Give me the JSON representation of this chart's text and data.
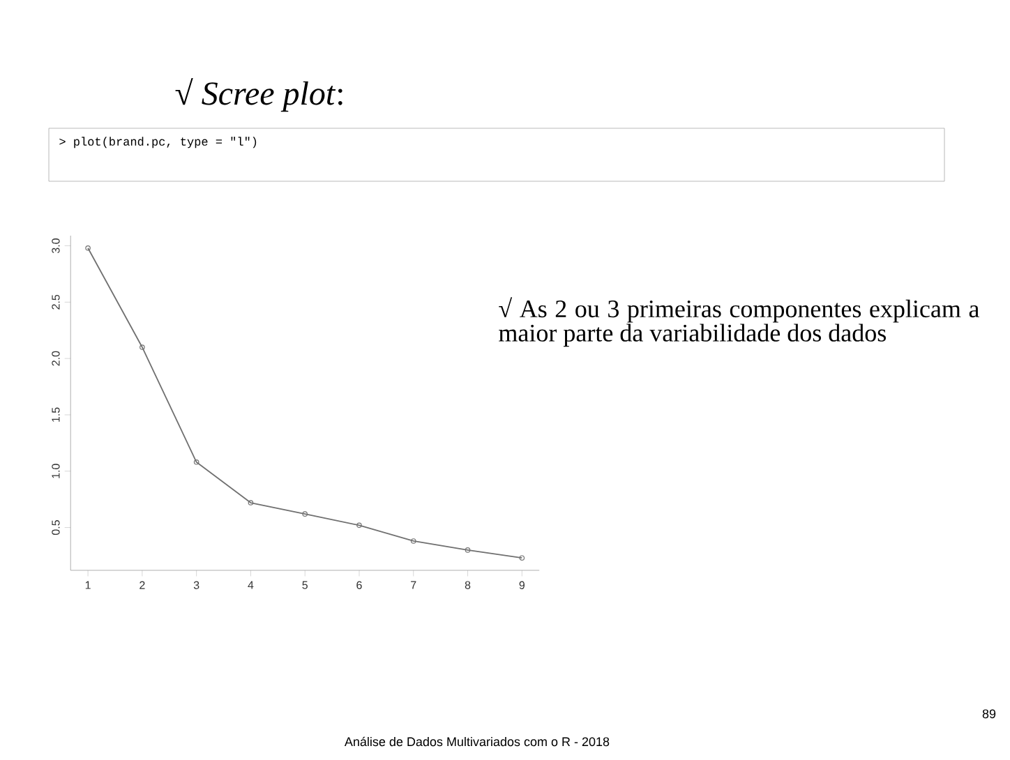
{
  "chart_data": {
    "type": "line",
    "title": "√ *Scree plot*:",
    "x": [
      1,
      2,
      3,
      4,
      5,
      6,
      7,
      8,
      9
    ],
    "series": [
      {
        "color": "#707070",
        "values": [
          2.98,
          2.1,
          1.08,
          0.72,
          0.62,
          0.52,
          0.38,
          0.3,
          0.23
        ]
      }
    ],
    "xlim": [
      0.68,
      9.32
    ],
    "ylim": [
      0.12,
      3.09
    ],
    "xticks": [
      1,
      2,
      3,
      4,
      5,
      6,
      7,
      8,
      9
    ],
    "yticks": [
      {
        "value": 0.5,
        "label": "0.5"
      },
      {
        "value": 1,
        "label": "1.0"
      },
      {
        "value": 1.5,
        "label": "1.5"
      },
      {
        "value": 2,
        "label": "2.0"
      },
      {
        "value": 2.5,
        "label": "2.5"
      },
      {
        "value": 3,
        "label": "3.0"
      }
    ],
    "marker": "circle",
    "line_style": "solid",
    "annotations": [
      "> plot(brand.pc, type = \"l\")",
      "√ As 2 ou 3 primeiras componentes explicam a maior parte da variabilidade dos dados",
      "Análise de Dados Multivariados com o R - 2018",
      "89"
    ]
  }
}
